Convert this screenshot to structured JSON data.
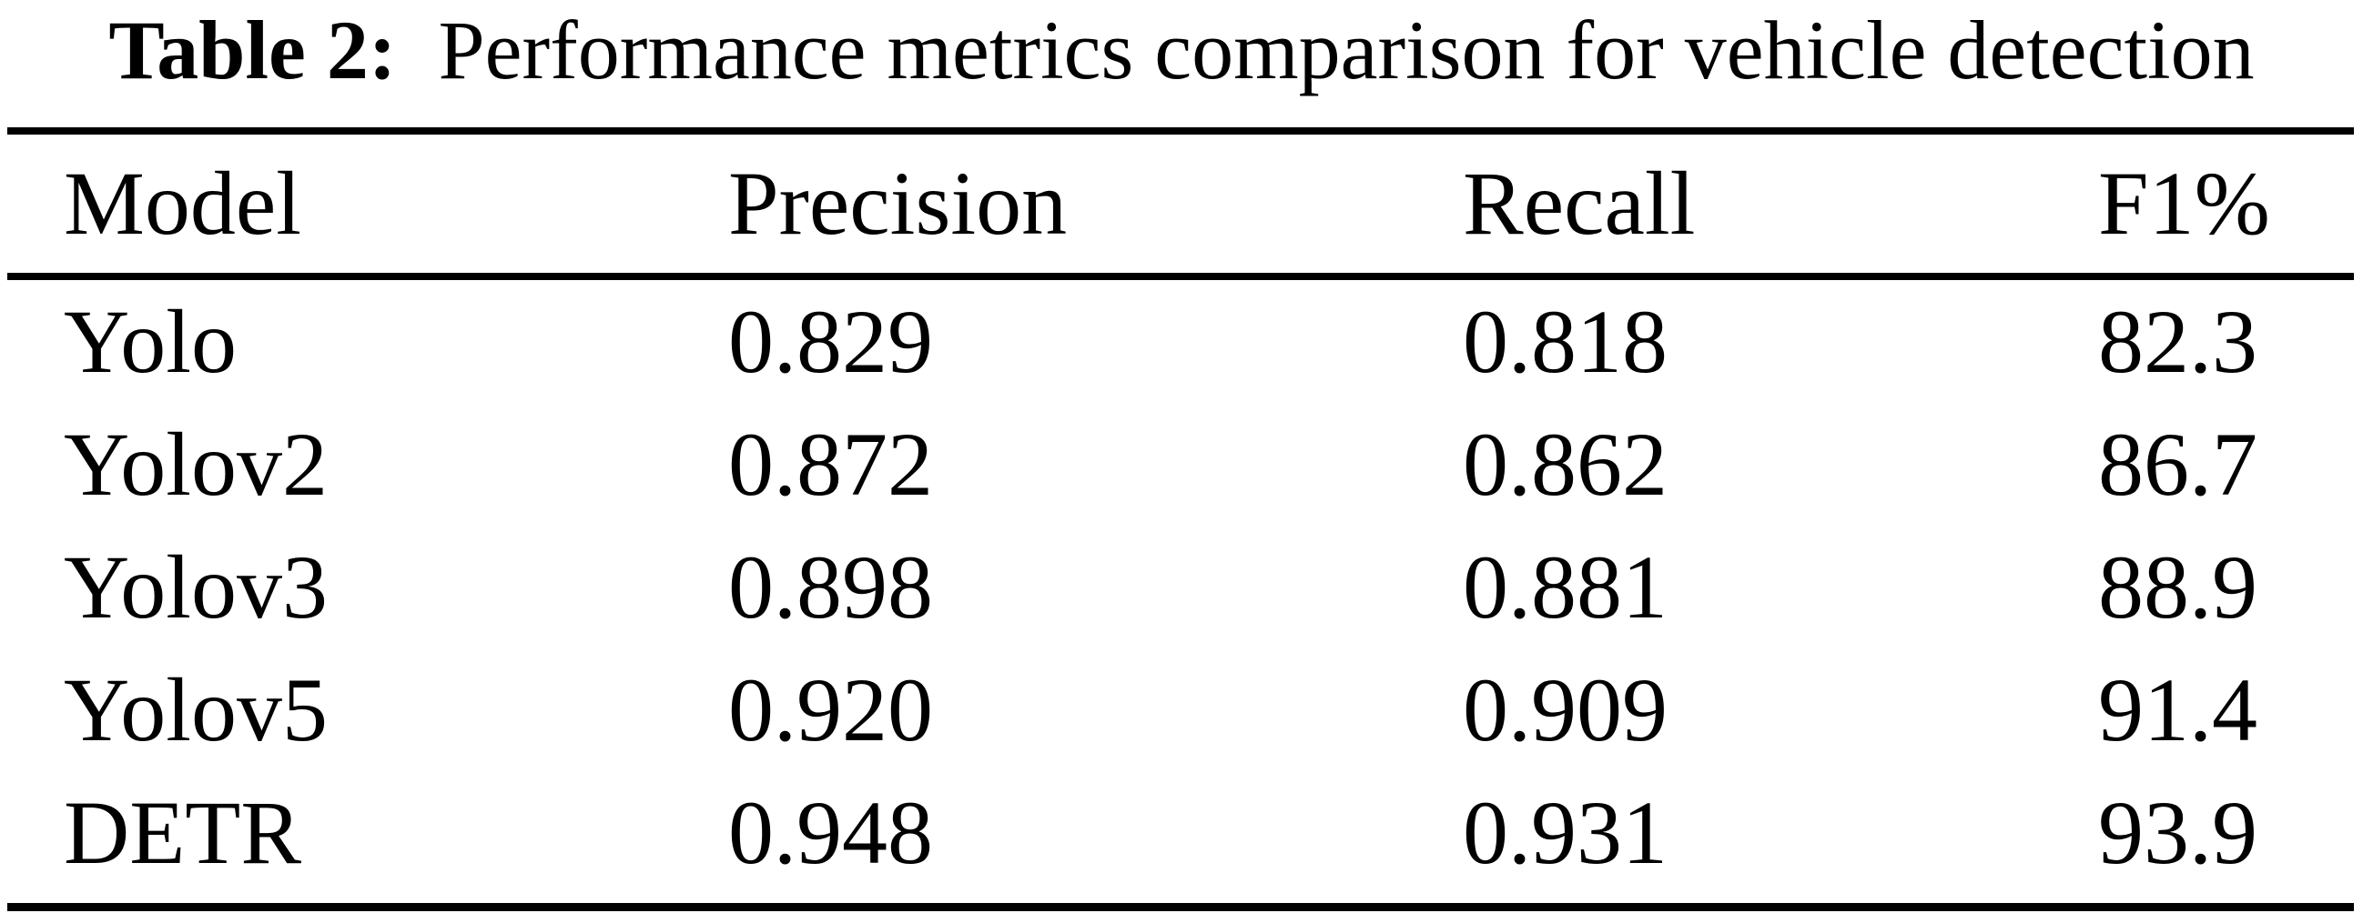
{
  "page": {
    "background": "#ffffff",
    "text_color": "#000000",
    "rule_color": "#000000"
  },
  "caption": {
    "label": "Table 2:",
    "text": "Performance metrics comparison for vehicle detection"
  },
  "table": {
    "headers": {
      "model": "Model",
      "precision": "Precision",
      "recall": "Recall",
      "f1": "F1%"
    },
    "rows": [
      {
        "model": "Yolo",
        "precision": "0.829",
        "recall": "0.818",
        "f1": "82.3"
      },
      {
        "model": "Yolov2",
        "precision": "0.872",
        "recall": "0.862",
        "f1": "86.7"
      },
      {
        "model": "Yolov3",
        "precision": "0.898",
        "recall": "0.881",
        "f1": "88.9"
      },
      {
        "model": "Yolov5",
        "precision": "0.920",
        "recall": "0.909",
        "f1": "91.4"
      },
      {
        "model": "DETR",
        "precision": "0.948",
        "recall": "0.931",
        "f1": "93.9"
      }
    ]
  }
}
